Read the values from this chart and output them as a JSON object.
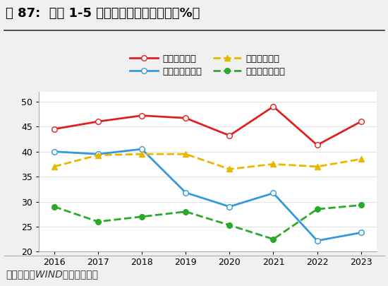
{
  "title": "图 87:  历年 1-5 月份财政收支进度情况（%）",
  "source": "资料来源：WIND，财信研究院",
  "years": [
    2016,
    2017,
    2018,
    2019,
    2020,
    2021,
    2022,
    2023
  ],
  "series": [
    {
      "name": "公共财政收入",
      "values": [
        44.5,
        46.0,
        47.2,
        46.7,
        43.2,
        49.0,
        41.3,
        46.0
      ],
      "color": "#e02020",
      "linestyle": "solid",
      "marker": "o",
      "markerfacecolor": "white",
      "linewidth": 2.0,
      "legend_row": 0,
      "legend_col": 0
    },
    {
      "name": "政府性基金收入",
      "values": [
        40.0,
        39.5,
        40.5,
        31.8,
        29.0,
        31.7,
        22.2,
        23.8
      ],
      "color": "#3399dd",
      "linestyle": "solid",
      "marker": "o",
      "markerfacecolor": "white",
      "linewidth": 2.0,
      "legend_row": 0,
      "legend_col": 1
    },
    {
      "name": "公共财政支出",
      "values": [
        37.0,
        39.3,
        39.5,
        39.5,
        36.5,
        37.5,
        37.0,
        38.5
      ],
      "color": "#e8b800",
      "linestyle": "dashed",
      "marker": "^",
      "markerfacecolor": "#e8b800",
      "linewidth": 2.0,
      "legend_row": 1,
      "legend_col": 0
    },
    {
      "name": "政府性基金支出",
      "values": [
        29.0,
        26.0,
        27.0,
        28.0,
        25.3,
        22.5,
        28.5,
        29.3
      ],
      "color": "#2aaa2a",
      "linestyle": "dashed",
      "marker": "o",
      "markerfacecolor": "#2aaa2a",
      "linewidth": 2.0,
      "legend_row": 1,
      "legend_col": 1
    }
  ],
  "ylim": [
    20,
    52
  ],
  "yticks": [
    20,
    25,
    30,
    35,
    40,
    45,
    50
  ],
  "bg_color": "#f0f0f0",
  "plot_bg_color": "#ffffff",
  "title_fontsize": 13,
  "legend_fontsize": 9.5,
  "tick_fontsize": 9,
  "source_fontsize": 10
}
